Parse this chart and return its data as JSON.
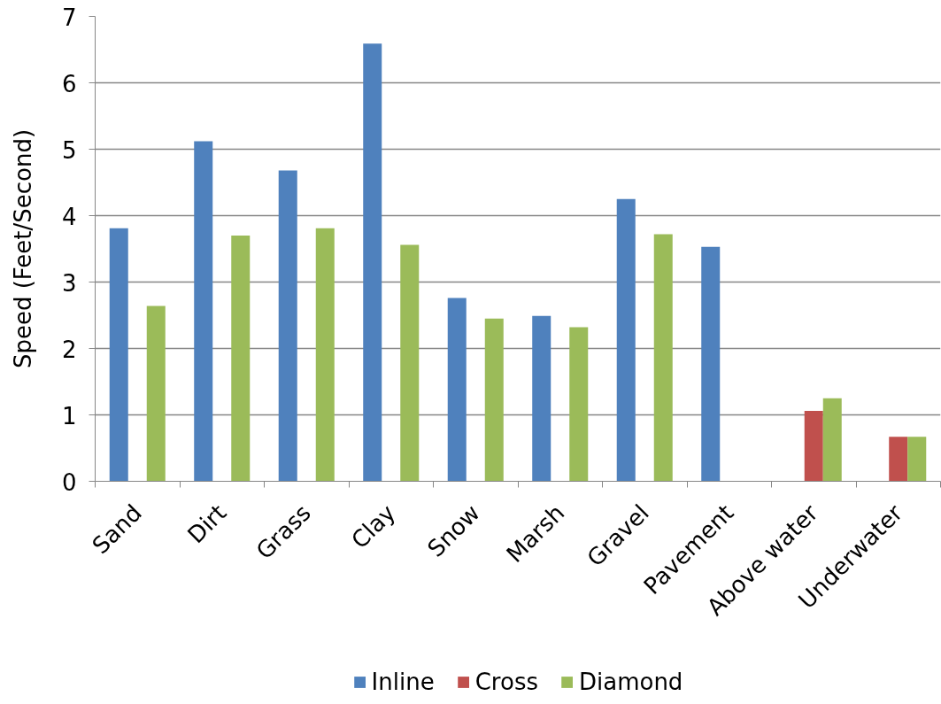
{
  "chart_data": {
    "type": "bar",
    "ylabel": "Speed (Feet/Second)",
    "categories": [
      "Sand",
      "Dirt",
      "Grass",
      "Clay",
      "Snow",
      "Marsh",
      "Gravel",
      "Pavement",
      "Above water",
      "Underwater"
    ],
    "series": [
      {
        "name": "Inline",
        "color": "#4f81bd",
        "values": [
          3.81,
          5.12,
          4.68,
          6.59,
          2.76,
          2.49,
          4.25,
          3.53,
          null,
          null
        ]
      },
      {
        "name": "Cross",
        "color": "#c0504d",
        "values": [
          null,
          null,
          null,
          null,
          null,
          null,
          null,
          null,
          1.06,
          0.67
        ]
      },
      {
        "name": "Diamond",
        "color": "#9bbb59",
        "values": [
          2.64,
          3.7,
          3.81,
          3.56,
          2.45,
          2.32,
          3.72,
          null,
          1.25,
          0.67
        ]
      }
    ],
    "ylim": [
      0,
      7
    ],
    "yticks": [
      0,
      1,
      2,
      3,
      4,
      5,
      6,
      7
    ],
    "grid": "y",
    "legend": "bottom"
  }
}
